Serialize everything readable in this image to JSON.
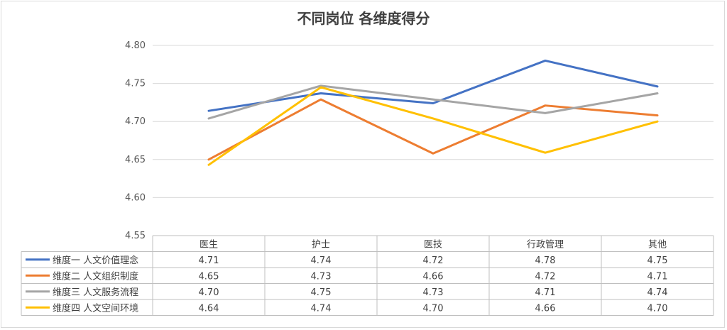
{
  "chart_data": {
    "type": "line",
    "title": "不同岗位 各维度得分",
    "categories": [
      "医生",
      "护士",
      "医技",
      "行政管理",
      "其他"
    ],
    "ylim": [
      4.55,
      4.8
    ],
    "yticks": [
      "4.80",
      "4.75",
      "4.70",
      "4.65",
      "4.60",
      "4.55"
    ],
    "grid": true,
    "legend": "data-table-left",
    "series": [
      {
        "name": "维度一 人文价值理念",
        "color": "#4472C4",
        "values": [
          4.714,
          4.737,
          4.724,
          4.78,
          4.746
        ],
        "labels": [
          "4.71",
          "4.74",
          "4.72",
          "4.78",
          "4.75"
        ]
      },
      {
        "name": "维度二 人文组织制度",
        "color": "#ED7D31",
        "values": [
          4.65,
          4.729,
          4.658,
          4.721,
          4.708
        ],
        "labels": [
          "4.65",
          "4.73",
          "4.66",
          "4.72",
          "4.71"
        ]
      },
      {
        "name": "维度三 人文服务流程",
        "color": "#A5A5A5",
        "values": [
          4.704,
          4.747,
          4.729,
          4.711,
          4.737
        ],
        "labels": [
          "4.70",
          "4.75",
          "4.73",
          "4.71",
          "4.74"
        ]
      },
      {
        "name": "维度四 人文空间环境",
        "color": "#FFC000",
        "values": [
          4.643,
          4.745,
          4.704,
          4.659,
          4.7
        ],
        "labels": [
          "4.64",
          "4.74",
          "4.70",
          "4.66",
          "4.70"
        ]
      }
    ]
  }
}
